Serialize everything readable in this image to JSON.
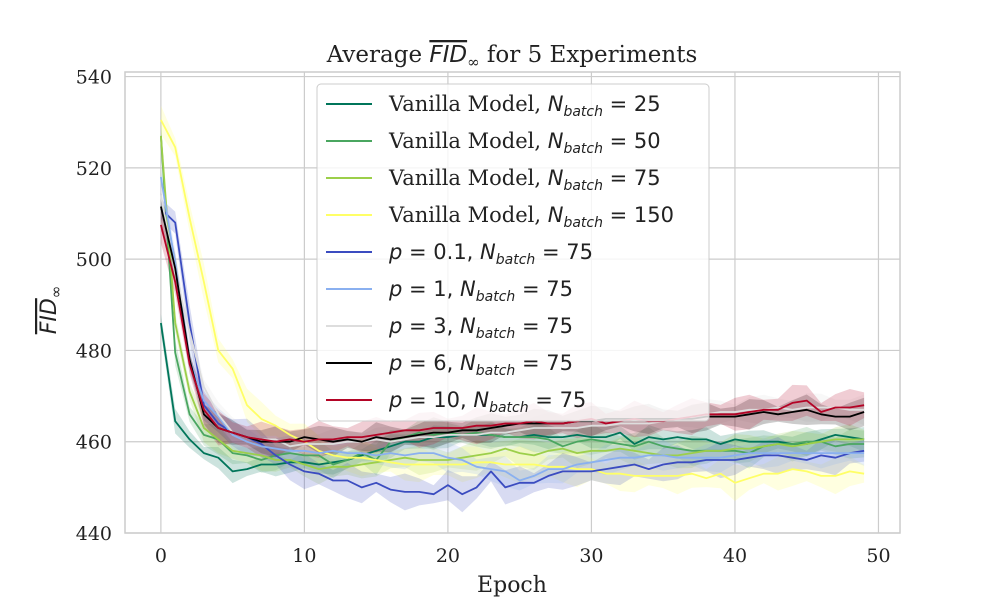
{
  "chart_data": {
    "type": "line",
    "title": {
      "pre": "Average ",
      "math": "FID",
      "sub": "∞",
      "post": " for 5 Experiments"
    },
    "xlabel": "Epoch",
    "ylabel": {
      "math": "FID",
      "sub": "∞"
    },
    "xlim": [
      -2.5,
      51.5
    ],
    "ylim": [
      440,
      541
    ],
    "xticks": [
      0,
      10,
      20,
      30,
      40,
      50
    ],
    "yticks": [
      440,
      460,
      480,
      500,
      520,
      540
    ],
    "grid": true,
    "legend_position": "upper-center",
    "x": [
      0,
      1,
      2,
      3,
      4,
      5,
      6,
      7,
      8,
      9,
      10,
      11,
      12,
      13,
      14,
      15,
      16,
      17,
      18,
      19,
      20,
      21,
      22,
      23,
      24,
      25,
      26,
      27,
      28,
      29,
      30,
      31,
      32,
      33,
      34,
      35,
      36,
      37,
      38,
      39,
      40,
      41,
      42,
      43,
      44,
      45,
      46,
      47,
      48,
      49
    ],
    "series": [
      {
        "name": "Vanilla Model, N_batch = 25",
        "legend": {
          "pre": "Vanilla Model, ",
          "math": "N",
          "sub": "batch",
          "post": " = 25"
        },
        "color": "#00755a",
        "values": [
          486,
          464.5,
          460.5,
          457.5,
          456.5,
          453.5,
          454,
          455,
          455,
          455.5,
          455.5,
          455,
          455.5,
          456,
          457,
          458,
          459,
          460,
          460,
          461,
          461,
          461.5,
          461.5,
          461.5,
          461,
          461,
          461.5,
          461,
          461,
          461.5,
          461,
          461,
          462,
          459.5,
          461,
          460.5,
          461,
          460.5,
          460.5,
          459.5,
          460.5,
          460,
          460,
          460,
          459.5,
          459.5,
          460.5,
          461.5,
          461,
          460.5
        ],
        "band": 2.0
      },
      {
        "name": "Vanilla Model, N_batch = 50",
        "legend": {
          "pre": "Vanilla Model, ",
          "math": "N",
          "sub": "batch",
          "post": " = 50"
        },
        "color": "#4aa660",
        "values": [
          527,
          479.5,
          466,
          461.5,
          460.5,
          457.5,
          457,
          456,
          457,
          457.5,
          457,
          457,
          455,
          456,
          457.5,
          456,
          460,
          461,
          462,
          461.5,
          462,
          461.5,
          462,
          461.5,
          461,
          461,
          461,
          460.5,
          459,
          460,
          460.5,
          460,
          459.5,
          459,
          460,
          459,
          458.5,
          458,
          458,
          458,
          458,
          457.5,
          459,
          459.5,
          459.5,
          460,
          460,
          459,
          459.5,
          459.5
        ],
        "band": 2.5
      },
      {
        "name": "Vanilla Model, N_batch = 75",
        "legend": {
          "pre": "Vanilla Model, ",
          "math": "N",
          "sub": "batch",
          "post": " = 75"
        },
        "color": "#9ccf4a",
        "values": [
          527,
          486,
          471,
          463,
          460.5,
          458,
          457.5,
          457,
          456,
          456,
          455,
          454,
          454.5,
          454.5,
          455,
          455.5,
          456,
          456.5,
          456,
          456,
          456,
          456.5,
          457,
          457.5,
          458.5,
          457.5,
          457,
          458,
          458.5,
          457.5,
          458,
          458,
          458.5,
          458,
          457.5,
          457,
          457,
          457.5,
          458,
          458,
          458.5,
          458.5,
          459,
          459.5,
          459,
          459.5,
          460,
          460.5,
          460.5,
          460.5
        ],
        "band": 2.5
      },
      {
        "name": "Vanilla Model, N_batch = 150",
        "legend": {
          "pre": "Vanilla Model, ",
          "math": "N",
          "sub": "batch",
          "post": " = 150"
        },
        "color": "#ffff66",
        "values": [
          530.5,
          524.5,
          509,
          495,
          480,
          476,
          468,
          465,
          463.5,
          461.5,
          460,
          458,
          457,
          456.5,
          456.5,
          456,
          455.5,
          455,
          455,
          455,
          455,
          455,
          455.5,
          455.5,
          455,
          455,
          455,
          454.5,
          454.5,
          454,
          454,
          453,
          453,
          452.5,
          452.5,
          452.5,
          452.5,
          453,
          452,
          453,
          451,
          452,
          453,
          453,
          454,
          453.5,
          452.5,
          452.5,
          453.5,
          453
        ],
        "band": 3.0
      },
      {
        "name": "p = 0.1, N_batch = 75",
        "legend": {
          "pre": "",
          "math": "p",
          "mid": " = 0.1, ",
          "math2": "N",
          "sub": "batch",
          "post": " = 75"
        },
        "color": "#3b4cc0",
        "values": [
          511,
          508,
          486,
          468,
          464,
          462,
          461,
          459.5,
          457,
          455,
          453.5,
          453,
          451.5,
          451.5,
          450,
          451,
          449.5,
          449,
          449,
          448.5,
          450.5,
          448.5,
          450,
          453.5,
          450,
          451,
          451,
          452.5,
          453.5,
          453.5,
          453.5,
          454,
          454.5,
          455,
          454,
          455,
          455.5,
          455.5,
          456,
          456,
          456,
          456.5,
          457,
          457,
          456.5,
          456,
          457,
          456.5,
          457.5,
          458
        ],
        "band": 3.0
      },
      {
        "name": "p = 1, N_batch = 75",
        "legend": {
          "pre": "",
          "math": "p",
          "mid": " = 1, ",
          "math2": "N",
          "sub": "batch",
          "post": " = 75"
        },
        "color": "#8ab0f0",
        "values": [
          518,
          499,
          478,
          469,
          465.5,
          461.5,
          460,
          459,
          458.5,
          458,
          458,
          457.5,
          458,
          457.5,
          457.5,
          457,
          457.5,
          457,
          457.5,
          457.5,
          456.5,
          456,
          454.5,
          454,
          453.5,
          451.5,
          452.5,
          454,
          454,
          455,
          455.5,
          456,
          456.5,
          456.5,
          457,
          457,
          456.5,
          456.5,
          456.5,
          456.5,
          457,
          457.5,
          457.5,
          457.5,
          457.5,
          457.5,
          457.5,
          457.5,
          457.5,
          457.5
        ],
        "band": 2.5
      },
      {
        "name": "p = 3, N_batch = 75",
        "legend": {
          "pre": "",
          "math": "p",
          "mid": " = 3, ",
          "math2": "N",
          "sub": "batch",
          "post": " = 75"
        },
        "color": "#dddddd",
        "values": [
          514,
          497,
          484,
          472,
          466,
          462,
          461,
          460.5,
          460.5,
          459,
          459.5,
          459.5,
          459.5,
          460,
          460,
          460.5,
          460,
          460.5,
          461,
          461,
          461.5,
          461.5,
          461.5,
          462,
          462,
          462.5,
          463,
          463,
          463,
          463,
          463.5,
          463.5,
          464,
          464,
          464,
          464.5,
          465,
          465.5,
          466,
          466.5,
          466.5,
          467,
          467,
          467.5,
          467,
          467.5,
          467.5,
          467.5,
          467,
          467
        ],
        "band": 2.5
      },
      {
        "name": "p = 6, N_batch = 75",
        "legend": {
          "pre": "",
          "math": "p",
          "mid": " = 6, ",
          "math2": "N",
          "sub": "batch",
          "post": " = 75"
        },
        "color": "#000000",
        "values": [
          511.5,
          498,
          478,
          466,
          463,
          462,
          461,
          460,
          460,
          460,
          461,
          460.5,
          460,
          460.5,
          460,
          461,
          460.5,
          461,
          461.5,
          462,
          462,
          462.5,
          462.5,
          463,
          463.5,
          464,
          464,
          464,
          464,
          464.5,
          464.5,
          465,
          465,
          465,
          465,
          465,
          465,
          465,
          465.5,
          465.5,
          465.5,
          466,
          466.5,
          466,
          466.5,
          467,
          466,
          465.5,
          465.5,
          466.5
        ],
        "band": 2.5
      },
      {
        "name": "p = 10, N_batch = 75",
        "legend": {
          "pre": "",
          "math": "p",
          "mid": " = 10, ",
          "math2": "N",
          "sub": "batch",
          "post": " = 75"
        },
        "color": "#b40426",
        "values": [
          507.5,
          495,
          477,
          467,
          463,
          462,
          461,
          460.5,
          460,
          460.5,
          460,
          460.5,
          460.5,
          461,
          461,
          461.5,
          462,
          462.5,
          462.5,
          463,
          463,
          463,
          463.5,
          463.5,
          464,
          464,
          464.5,
          464,
          464,
          464.5,
          465,
          464,
          464.5,
          465,
          464.5,
          464.5,
          465,
          465.5,
          466,
          466,
          466,
          466.5,
          467,
          467,
          468.5,
          469,
          466.5,
          467.5,
          467.5,
          468
        ],
        "band": 3.0
      }
    ]
  }
}
